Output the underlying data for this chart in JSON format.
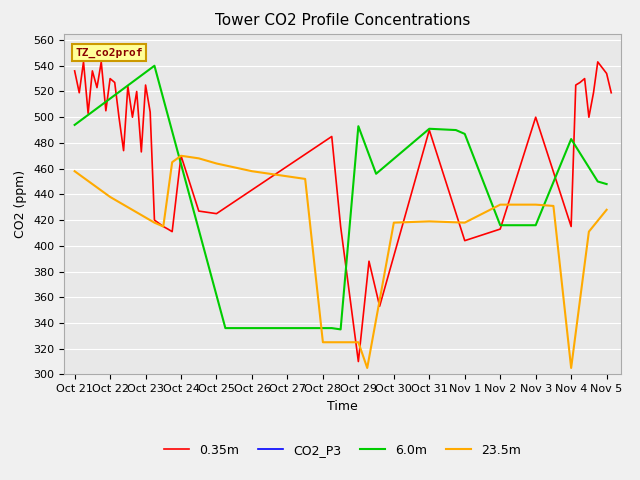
{
  "title": "Tower CO2 Profile Concentrations",
  "xlabel": "Time",
  "ylabel": "CO2 (ppm)",
  "ylim": [
    300,
    565
  ],
  "yticks": [
    300,
    320,
    340,
    360,
    380,
    400,
    420,
    440,
    460,
    480,
    500,
    520,
    540,
    560
  ],
  "x_labels": [
    "Oct 21",
    "Oct 22",
    "Oct 23",
    "Oct 24",
    "Oct 25",
    "Oct 26",
    "Oct 27",
    "Oct 28",
    "Oct 29",
    "Oct 30",
    "Oct 31",
    "Nov 1",
    "Nov 2",
    "Nov 3",
    "Nov 4",
    "Nov 5"
  ],
  "annotation_text": "TZ_co2prof",
  "annotation_box_facecolor": "#ffff99",
  "annotation_box_edgecolor": "#cc9900",
  "annotation_text_color": "#880000",
  "bg_color": "#e8e8e8",
  "fig_facecolor": "#f0f0f0",
  "grid_color": "#ffffff",
  "title_fontsize": 11,
  "axis_label_fontsize": 9,
  "tick_fontsize": 8,
  "legend_fontsize": 9,
  "red_x": [
    0,
    0.13,
    0.25,
    0.38,
    0.5,
    0.63,
    0.75,
    0.88,
    1.0,
    1.13,
    1.25,
    1.38,
    1.5,
    1.63,
    1.75,
    1.88,
    2.0,
    2.13,
    2.25,
    2.5,
    2.63,
    2.75,
    3.0,
    3.5,
    4.0,
    7.25,
    7.5,
    8.0,
    8.3,
    8.6,
    10.0,
    11.0,
    12.0,
    13.0,
    14.0,
    14.13,
    14.25,
    14.38,
    14.5,
    14.63,
    14.75,
    15.0,
    15.13
  ],
  "red_y": [
    536,
    519,
    543,
    503,
    536,
    523,
    543,
    505,
    530,
    527,
    500,
    474,
    524,
    500,
    520,
    473,
    525,
    504,
    420,
    415,
    413,
    411,
    470,
    427,
    425,
    485,
    415,
    310,
    388,
    353,
    490,
    404,
    413,
    500,
    415,
    525,
    527,
    530,
    500,
    519,
    543,
    534,
    519
  ],
  "green_x": [
    0,
    2.25,
    4.25,
    7.25,
    7.5,
    8.0,
    8.5,
    10.0,
    10.75,
    11.0,
    12.0,
    13.0,
    14.0,
    14.75,
    15.0
  ],
  "green_y": [
    494,
    540,
    336,
    336,
    335,
    493,
    456,
    491,
    490,
    487,
    416,
    416,
    483,
    450,
    448
  ],
  "orange_x": [
    0,
    0.25,
    0.5,
    0.75,
    1.0,
    1.25,
    1.5,
    1.75,
    2.0,
    2.25,
    2.5,
    2.75,
    3.0,
    3.5,
    4.0,
    4.5,
    5.0,
    5.5,
    6.0,
    6.5,
    7.0,
    7.5,
    8.0,
    8.25,
    9.0,
    10.0,
    11.0,
    12.0,
    13.0,
    13.5,
    14.0,
    14.5,
    15.0
  ],
  "orange_y": [
    458,
    453,
    448,
    443,
    438,
    434,
    430,
    426,
    422,
    418,
    415,
    465,
    470,
    468,
    464,
    461,
    458,
    456,
    454,
    452,
    325,
    325,
    325,
    305,
    418,
    419,
    418,
    432,
    432,
    431,
    305,
    411,
    428
  ]
}
